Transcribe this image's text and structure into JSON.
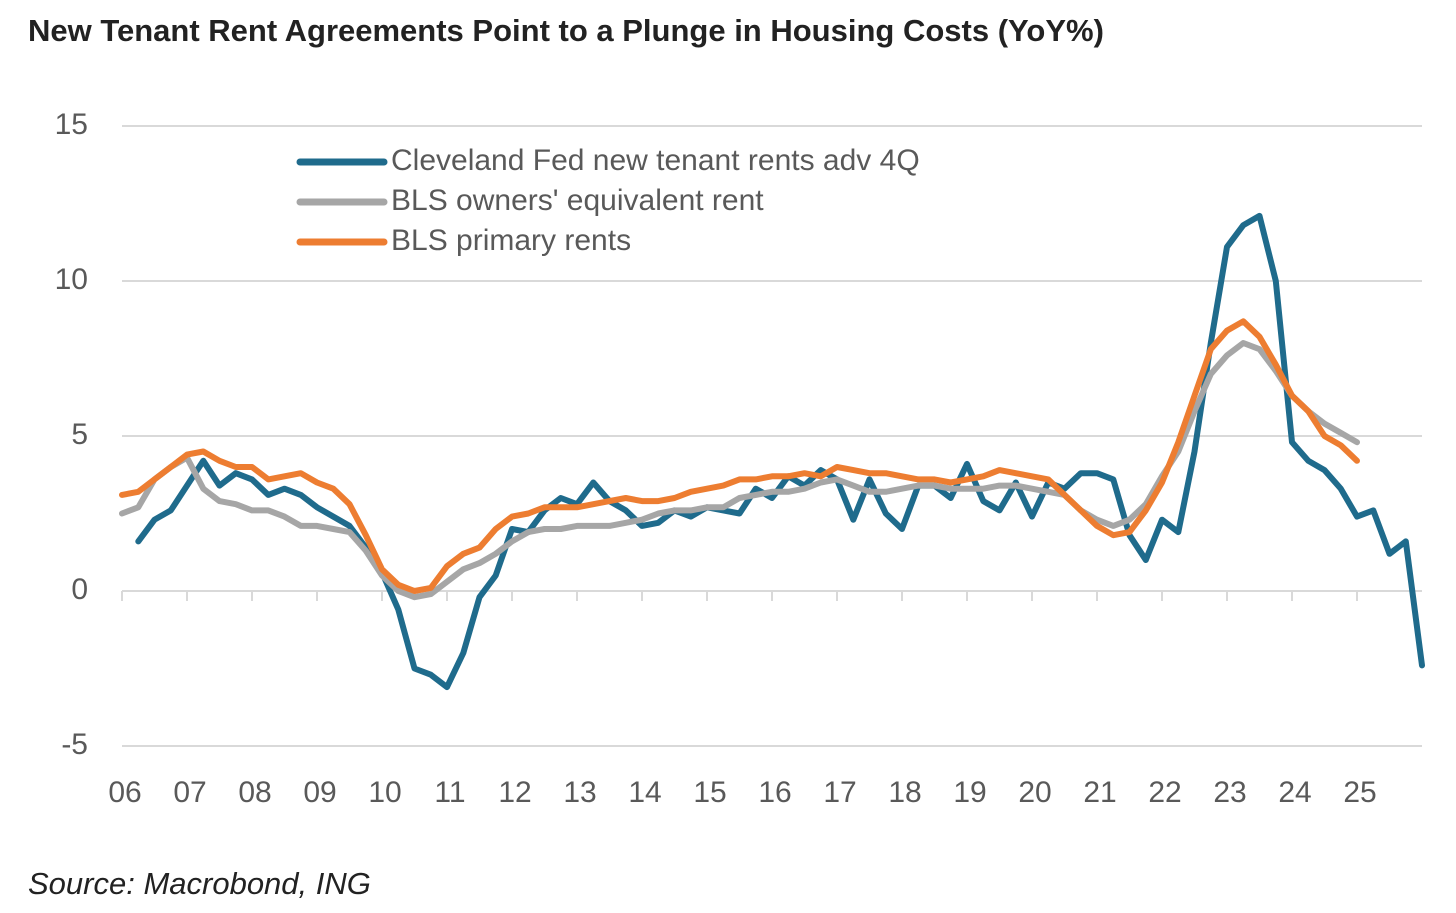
{
  "chart_data": {
    "type": "line",
    "title": "New Tenant Rent Agreements Point to a Plunge in Housing Costs (YoY%)",
    "source": "Source: Macrobond, ING",
    "x": [
      6,
      6.25,
      6.5,
      6.75,
      7,
      7.25,
      7.5,
      7.75,
      8,
      8.25,
      8.5,
      8.75,
      9,
      9.25,
      9.5,
      9.75,
      10,
      10.25,
      10.5,
      10.75,
      11,
      11.25,
      11.5,
      11.75,
      12,
      12.25,
      12.5,
      12.75,
      13,
      13.25,
      13.5,
      13.75,
      14,
      14.25,
      14.5,
      14.75,
      15,
      15.25,
      15.5,
      15.75,
      16,
      16.25,
      16.5,
      16.75,
      17,
      17.25,
      17.5,
      17.75,
      18,
      18.25,
      18.5,
      18.75,
      19,
      19.25,
      19.5,
      19.75,
      20,
      20.25,
      20.5,
      20.75,
      21,
      21.25,
      21.5,
      21.75,
      22,
      22.25,
      22.5,
      22.75,
      23,
      23.25,
      23.5,
      23.75,
      24,
      24.25,
      24.5,
      24.75,
      25,
      25.25,
      25.5,
      25.75,
      26
    ],
    "series": [
      {
        "name": "Cleveland Fed new tenant rents adv 4Q",
        "color": "#1f6b8c",
        "values": [
          null,
          1.6,
          2.3,
          2.6,
          3.4,
          4.2,
          3.4,
          3.8,
          3.6,
          3.1,
          3.3,
          3.1,
          2.7,
          2.4,
          2.1,
          1.4,
          0.6,
          -0.6,
          -2.5,
          -2.7,
          -3.1,
          -2.0,
          -0.2,
          0.5,
          2.0,
          1.9,
          2.6,
          3.0,
          2.8,
          3.5,
          2.9,
          2.6,
          2.1,
          2.2,
          2.6,
          2.4,
          2.7,
          2.6,
          2.5,
          3.3,
          3.0,
          3.7,
          3.4,
          3.9,
          3.6,
          2.3,
          3.6,
          2.5,
          2.0,
          3.4,
          3.4,
          3.0,
          4.1,
          2.9,
          2.6,
          3.5,
          2.4,
          3.5,
          3.3,
          3.8,
          3.8,
          3.6,
          1.8,
          1.0,
          2.3,
          1.9,
          4.5,
          8.0,
          11.1,
          11.8,
          12.1,
          10.0,
          4.8,
          4.2,
          3.9,
          3.3,
          2.4,
          2.6,
          1.2,
          1.6,
          -2.4
        ]
      },
      {
        "name": "BLS owners' equivalent rent",
        "color": "#a6a6a6",
        "values": [
          2.5,
          2.7,
          3.6,
          4.0,
          4.3,
          3.3,
          2.9,
          2.8,
          2.6,
          2.6,
          2.4,
          2.1,
          2.1,
          2.0,
          1.9,
          1.3,
          0.5,
          0.0,
          -0.2,
          -0.1,
          0.3,
          0.7,
          0.9,
          1.2,
          1.6,
          1.9,
          2.0,
          2.0,
          2.1,
          2.1,
          2.1,
          2.2,
          2.3,
          2.5,
          2.6,
          2.6,
          2.7,
          2.7,
          3.0,
          3.1,
          3.2,
          3.2,
          3.3,
          3.5,
          3.6,
          3.4,
          3.2,
          3.2,
          3.3,
          3.4,
          3.4,
          3.3,
          3.3,
          3.3,
          3.4,
          3.4,
          3.3,
          3.2,
          3.1,
          2.6,
          2.3,
          2.1,
          2.3,
          2.8,
          3.7,
          4.5,
          5.8,
          7.0,
          7.6,
          8.0,
          7.8,
          7.1,
          6.3,
          5.8,
          5.4,
          5.1,
          4.8,
          null,
          null,
          null,
          null
        ]
      },
      {
        "name": "BLS primary rents",
        "color": "#ed7d31",
        "values": [
          3.1,
          3.2,
          3.6,
          4.0,
          4.4,
          4.5,
          4.2,
          4.0,
          4.0,
          3.6,
          3.7,
          3.8,
          3.5,
          3.3,
          2.8,
          1.8,
          0.7,
          0.2,
          0.0,
          0.1,
          0.8,
          1.2,
          1.4,
          2.0,
          2.4,
          2.5,
          2.7,
          2.7,
          2.7,
          2.8,
          2.9,
          3.0,
          2.9,
          2.9,
          3.0,
          3.2,
          3.3,
          3.4,
          3.6,
          3.6,
          3.7,
          3.7,
          3.8,
          3.7,
          4.0,
          3.9,
          3.8,
          3.8,
          3.7,
          3.6,
          3.6,
          3.5,
          3.6,
          3.7,
          3.9,
          3.8,
          3.7,
          3.6,
          3.1,
          2.6,
          2.1,
          1.8,
          1.9,
          2.6,
          3.5,
          4.8,
          6.3,
          7.8,
          8.4,
          8.7,
          8.2,
          7.3,
          6.3,
          5.8,
          5.0,
          4.7,
          4.2,
          null,
          null,
          null,
          null
        ]
      }
    ],
    "xlim": [
      6,
      26
    ],
    "xticks": [
      {
        "value": 6,
        "label": "06"
      },
      {
        "value": 7,
        "label": "07"
      },
      {
        "value": 8,
        "label": "08"
      },
      {
        "value": 9,
        "label": "09"
      },
      10,
      11,
      12,
      13,
      14,
      15,
      16,
      17,
      18,
      19,
      20,
      21,
      22,
      23,
      24,
      25
    ],
    "ylim": [
      -5,
      15
    ],
    "yticks": [
      -5,
      0,
      5,
      10,
      15
    ],
    "grid": true,
    "legend": "top-left"
  }
}
